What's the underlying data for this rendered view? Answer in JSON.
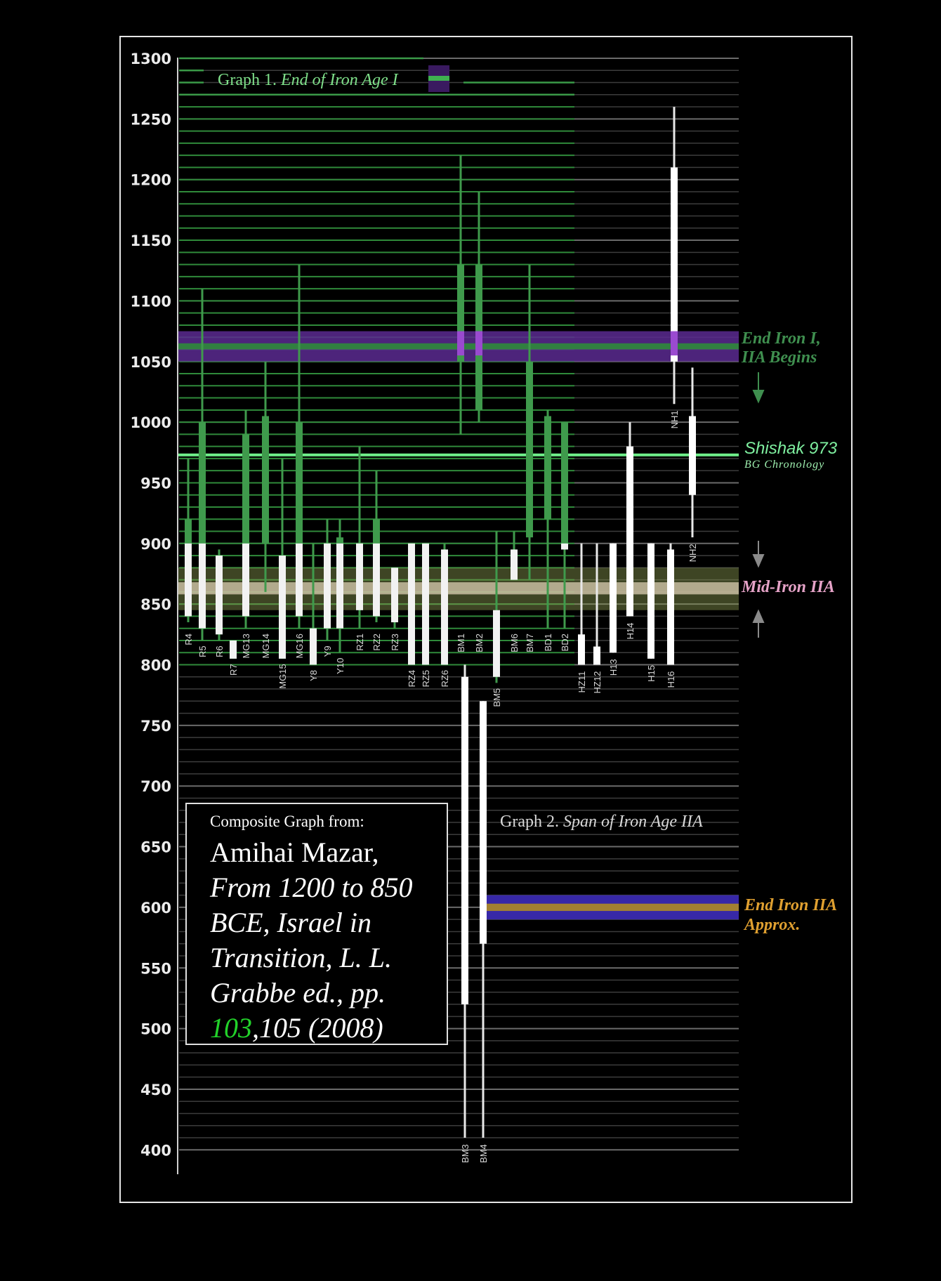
{
  "colors": {
    "background": "#000000",
    "graph1_green": "#2f8a3a",
    "bright_green": "#6ff08a",
    "purple": "#7a3aa8",
    "tan": "#cfc3a8",
    "orange": "#e0a030",
    "blue": "#3a2ab0",
    "white": "#ffffff"
  },
  "chart_data": {
    "type": "range",
    "ylim": [
      395,
      1305
    ],
    "y_ticks": [
      1300,
      1250,
      1200,
      1150,
      1100,
      1050,
      1000,
      950,
      900,
      850,
      800,
      750,
      700,
      650,
      600,
      550,
      500,
      450,
      400
    ],
    "graph1_title": "Graph 1.",
    "graph1_title_italic": "End of Iron Age I",
    "graph2_title": "Graph 2.",
    "graph2_title_italic": "Span of Iron Age IIA",
    "graph1_series": [
      {
        "label": "R4",
        "low": 835,
        "high": 970,
        "inner_low": 840,
        "inner_high": 920
      },
      {
        "label": "R5",
        "low": 820,
        "high": 1110,
        "inner_low": 830,
        "inner_high": 1000
      },
      {
        "label": "R6",
        "low": 820,
        "high": 895,
        "inner_low": 825,
        "inner_high": 890
      },
      {
        "label": "R7",
        "low": 805,
        "high": 820,
        "inner_low": 805,
        "inner_high": 820
      },
      {
        "label": "MG13",
        "low": 830,
        "high": 1010,
        "inner_low": 840,
        "inner_high": 990
      },
      {
        "label": "MG14",
        "low": 860,
        "high": 1050,
        "inner_low": 900,
        "inner_high": 1005
      },
      {
        "label": "MG15",
        "low": 805,
        "high": 970,
        "inner_low": 805,
        "inner_high": 890
      },
      {
        "label": "MG16",
        "low": 830,
        "high": 1130,
        "inner_low": 840,
        "inner_high": 1000
      },
      {
        "label": "Y8",
        "low": 800,
        "high": 900,
        "inner_low": 800,
        "inner_high": 830
      },
      {
        "label": "Y9",
        "low": 820,
        "high": 920,
        "inner_low": 830,
        "inner_high": 900
      },
      {
        "label": "Y10",
        "low": 810,
        "high": 920,
        "inner_low": 830,
        "inner_high": 905
      },
      {
        "label": "RZ1",
        "low": 830,
        "high": 980,
        "inner_low": 845,
        "inner_high": 900
      },
      {
        "label": "RZ2",
        "low": 835,
        "high": 960,
        "inner_low": 840,
        "inner_high": 920
      },
      {
        "label": "RZ3",
        "low": 830,
        "high": 880,
        "inner_low": 835,
        "inner_high": 880
      },
      {
        "label": "RZ4",
        "low": 800,
        "high": 900,
        "inner_low": 800,
        "inner_high": 900
      },
      {
        "label": "RZ5",
        "low": 800,
        "high": 900,
        "inner_low": 800,
        "inner_high": 900
      },
      {
        "label": "RZ6",
        "low": 800,
        "high": 900,
        "inner_low": 800,
        "inner_high": 895
      },
      {
        "label": "BM1",
        "low": 990,
        "high": 1220,
        "inner_low": 1050,
        "inner_high": 1130
      },
      {
        "label": "BM2",
        "low": 1000,
        "high": 1190,
        "inner_low": 1010,
        "inner_high": 1130
      },
      {
        "label": "BM5",
        "low": 785,
        "high": 910,
        "inner_low": 790,
        "inner_high": 845
      },
      {
        "label": "BM6",
        "low": 870,
        "high": 910,
        "inner_low": 870,
        "inner_high": 895
      },
      {
        "label": "BM7",
        "low": 870,
        "high": 1130,
        "inner_low": 905,
        "inner_high": 1050
      },
      {
        "label": "BD1",
        "low": 830,
        "high": 1010,
        "inner_low": 920,
        "inner_high": 1005
      },
      {
        "label": "BD2",
        "low": 830,
        "high": 1000,
        "inner_low": 895,
        "inner_high": 1000
      }
    ],
    "graph2_series": [
      {
        "label": "BM3",
        "low": 410,
        "high": 800,
        "inner_low": 520,
        "inner_high": 790
      },
      {
        "label": "BM4",
        "low": 410,
        "high": 770,
        "inner_low": 570,
        "inner_high": 770
      },
      {
        "label": "HZ11",
        "low": 800,
        "high": 900,
        "inner_low": 800,
        "inner_high": 825
      },
      {
        "label": "HZ12",
        "low": 800,
        "high": 900,
        "inner_low": 800,
        "inner_high": 815
      },
      {
        "label": "H13",
        "low": 810,
        "high": 900,
        "inner_low": 810,
        "inner_high": 900
      },
      {
        "label": "H14",
        "low": 840,
        "high": 1000,
        "inner_low": 840,
        "inner_high": 980
      },
      {
        "label": "H15",
        "low": 805,
        "high": 900,
        "inner_low": 805,
        "inner_high": 900
      },
      {
        "label": "H16",
        "low": 800,
        "high": 900,
        "inner_low": 800,
        "inner_high": 895
      },
      {
        "label": "NH1",
        "low": 1015,
        "high": 1260,
        "inner_low": 1050,
        "inner_high": 1210
      },
      {
        "label": "NH2",
        "low": 905,
        "high": 1045,
        "inner_low": 940,
        "inner_high": 1005
      }
    ],
    "bands": [
      {
        "name": "End Iron I,",
        "name2": "IIA Begins",
        "low": 1050,
        "high": 1075,
        "color": "#7a3aa8"
      },
      {
        "name": "Shishak 973",
        "name2": "BG Chronology",
        "value": 973,
        "color": "#6ff08a"
      },
      {
        "name": "Mid-Iron IIA",
        "low": 850,
        "high": 880,
        "color": "#cfc3a8"
      },
      {
        "name": "End Iron IIA",
        "name2": "Approx.",
        "low": 590,
        "high": 610,
        "color": "#e0a030"
      }
    ]
  },
  "source_box": {
    "heading": "Composite Graph from:",
    "author": "Amihai Mazar,",
    "line2": "From 1200 to 850",
    "line3": "BCE, Israel in",
    "line4": "Transition, L. L.",
    "line5": "Grabbe ed., pp.",
    "pages_linked": "103",
    "pages_rest": ",105 (2008)"
  }
}
